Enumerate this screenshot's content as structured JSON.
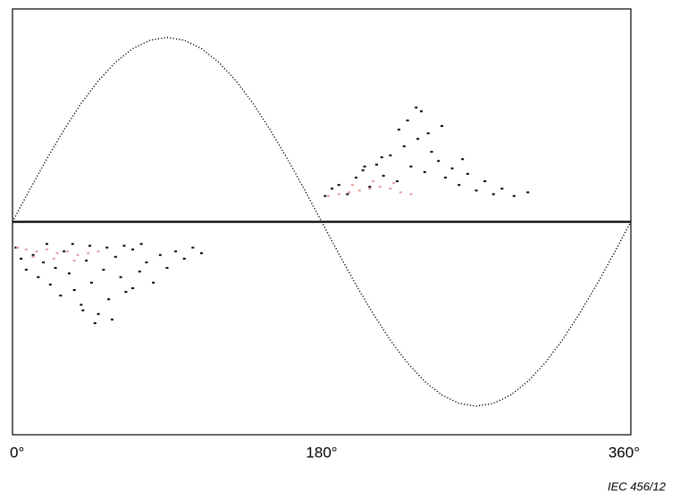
{
  "chart_data": {
    "type": "prpd",
    "annotation": "IEC  456/12",
    "xlim": [
      0,
      360
    ],
    "ylim": [
      -1.155,
      1.155
    ],
    "xticks": [
      {
        "value": 0,
        "label": "0°"
      },
      {
        "value": 180,
        "label": "180°"
      },
      {
        "value": 360,
        "label": "360°"
      }
    ],
    "zero_line": true,
    "series": [
      {
        "color": "#000000",
        "x": [
          0,
          10,
          20,
          30,
          40,
          50,
          60,
          70,
          80,
          90,
          100,
          110,
          120,
          130,
          140,
          150,
          160,
          170,
          180,
          190,
          200,
          210,
          220,
          230,
          240,
          250,
          260,
          270,
          280,
          290,
          300,
          310,
          320,
          330,
          340,
          350,
          360
        ],
        "values": [
          0,
          0.174,
          0.342,
          0.5,
          0.643,
          0.766,
          0.866,
          0.94,
          0.985,
          1,
          0.985,
          0.94,
          0.866,
          0.766,
          0.643,
          0.5,
          0.342,
          0.174,
          0,
          -0.174,
          -0.342,
          -0.5,
          -0.643,
          -0.766,
          -0.866,
          -0.94,
          -0.985,
          -1,
          -0.985,
          -0.94,
          -0.866,
          -0.766,
          -0.643,
          -0.5,
          -0.342,
          -0.174,
          0
        ]
      },
      {
        "color": "#000000",
        "x": [
          2,
          5,
          8,
          12,
          15,
          18,
          22,
          25,
          28,
          30,
          33,
          36,
          40,
          43,
          46,
          50,
          53,
          56,
          60,
          63,
          66,
          70,
          74,
          78,
          82,
          86,
          90,
          95,
          100,
          105,
          110,
          20,
          35,
          45,
          55,
          65,
          75,
          48,
          58,
          41,
          70
        ],
        "values": [
          -0.14,
          -0.2,
          -0.26,
          -0.18,
          -0.3,
          -0.22,
          -0.34,
          -0.25,
          -0.4,
          -0.16,
          -0.28,
          -0.37,
          -0.45,
          -0.21,
          -0.33,
          -0.5,
          -0.26,
          -0.42,
          -0.19,
          -0.3,
          -0.38,
          -0.15,
          -0.27,
          -0.22,
          -0.33,
          -0.18,
          -0.25,
          -0.16,
          -0.2,
          -0.14,
          -0.17,
          -0.12,
          -0.12,
          -0.13,
          -0.14,
          -0.13,
          -0.12,
          -0.55,
          -0.53,
          -0.48,
          -0.36
        ]
      },
      {
        "color": "#e89a9a",
        "x": [
          3,
          8,
          14,
          20,
          26,
          32,
          38,
          44,
          50,
          12,
          24,
          36
        ],
        "values": [
          -0.14,
          -0.15,
          -0.16,
          -0.15,
          -0.17,
          -0.16,
          -0.18,
          -0.17,
          -0.16,
          -0.19,
          -0.2,
          -0.21
        ]
      },
      {
        "color": "#000000",
        "x": [
          182,
          186,
          190,
          195,
          200,
          204,
          208,
          212,
          216,
          220,
          224,
          228,
          232,
          236,
          240,
          244,
          248,
          252,
          256,
          260,
          265,
          270,
          275,
          280,
          285,
          292,
          300,
          230,
          238,
          225,
          242,
          250,
          215,
          235,
          205,
          262
        ],
        "values": [
          0.14,
          0.18,
          0.2,
          0.15,
          0.24,
          0.28,
          0.19,
          0.31,
          0.25,
          0.36,
          0.22,
          0.41,
          0.3,
          0.45,
          0.27,
          0.38,
          0.33,
          0.24,
          0.29,
          0.2,
          0.26,
          0.17,
          0.22,
          0.15,
          0.18,
          0.14,
          0.16,
          0.55,
          0.6,
          0.5,
          0.48,
          0.52,
          0.35,
          0.62,
          0.3,
          0.34
        ]
      },
      {
        "color": "#e89a9a",
        "x": [
          184,
          190,
          196,
          202,
          208,
          214,
          220,
          226,
          232,
          198,
          210,
          222
        ],
        "values": [
          0.14,
          0.15,
          0.16,
          0.17,
          0.18,
          0.19,
          0.18,
          0.16,
          0.15,
          0.2,
          0.22,
          0.21
        ]
      }
    ]
  }
}
